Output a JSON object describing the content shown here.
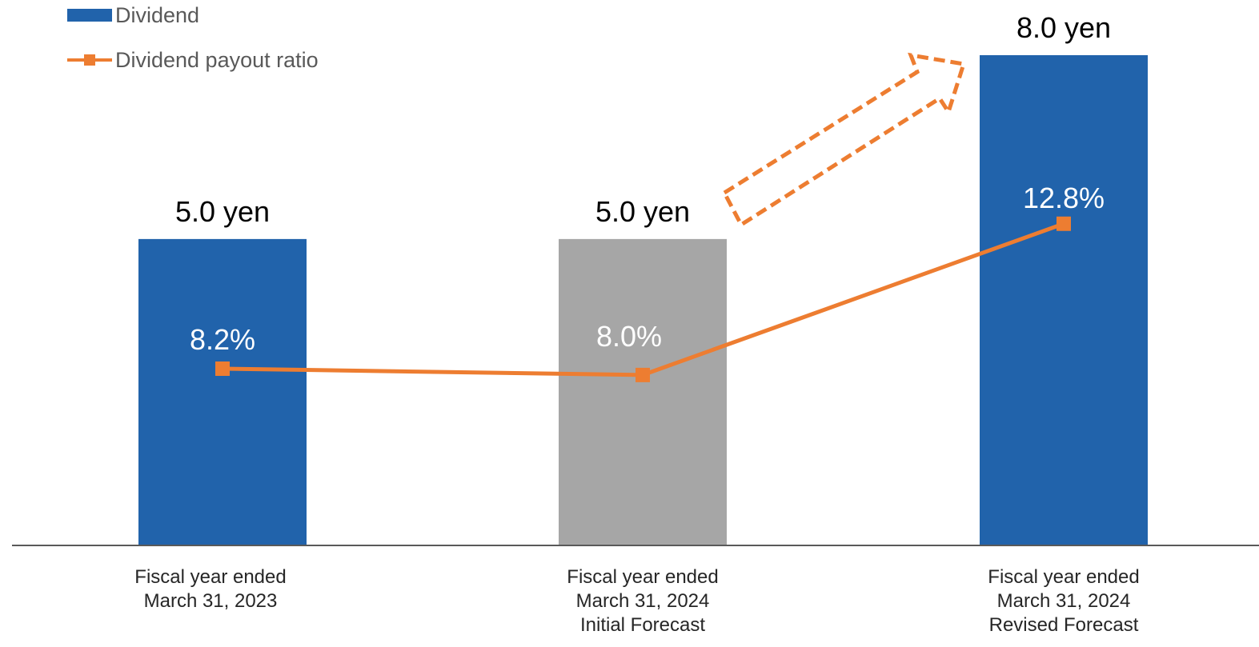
{
  "legend": {
    "bar_label": "Dividend",
    "line_label": "Dividend payout ratio"
  },
  "colors": {
    "dividend_blue": "#2163ab",
    "forecast_gray": "#a6a6a6",
    "payout_orange": "#ed7d31",
    "axis": "#595959"
  },
  "chart_data": {
    "type": "bar",
    "categories": [
      [
        "Fiscal year ended",
        "March 31, 2023"
      ],
      [
        "Fiscal year ended",
        "March 31, 2024",
        "Initial Forecast"
      ],
      [
        "Fiscal year ended",
        "March 31, 2024",
        "Revised Forecast"
      ]
    ],
    "series": [
      {
        "name": "Dividend",
        "type": "bar",
        "values": [
          5.0,
          5.0,
          8.0
        ],
        "value_labels": [
          "5.0 yen",
          "5.0 yen",
          "8.0 yen"
        ],
        "bar_colors": [
          "#2163ab",
          "#a6a6a6",
          "#2163ab"
        ]
      },
      {
        "name": "Dividend payout ratio",
        "type": "line",
        "values": [
          8.2,
          8.0,
          12.8
        ],
        "value_labels": [
          "8.2%",
          "8.0%",
          "12.8%"
        ],
        "color": "#ed7d31"
      }
    ],
    "annotations": [
      "dashed orange arrow pointing up from Initial Forecast to Revised Forecast"
    ],
    "legend_position": "top-left",
    "grid": false
  }
}
